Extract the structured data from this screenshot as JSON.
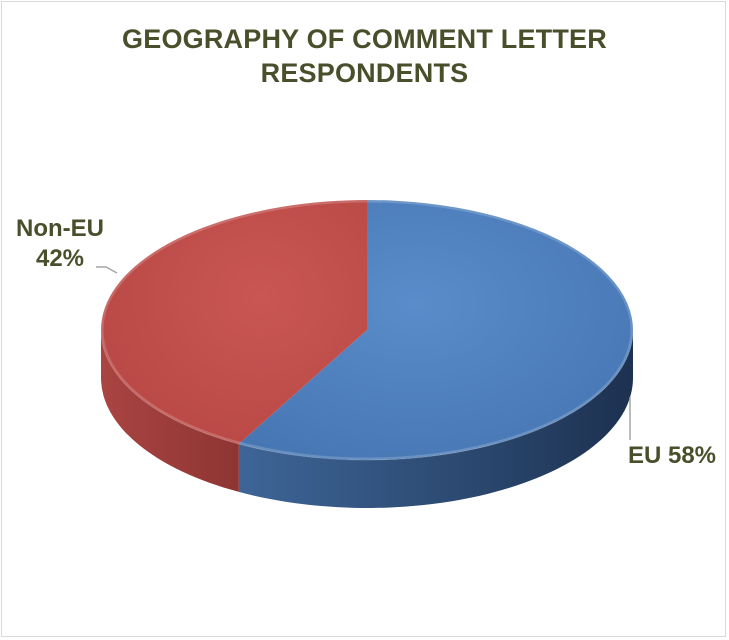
{
  "chart_data": {
    "type": "pie",
    "title_lines": [
      "GEOGRAPHY OF COMMENT LETTER",
      "RESPONDENTS"
    ],
    "slices": [
      {
        "name": "EU",
        "value": 58,
        "label": "EU 58%",
        "color": "#4f81bd"
      },
      {
        "name": "Non-EU",
        "value": 42,
        "label_lines": [
          "Non-EU",
          "42%"
        ],
        "color": "#c0504d"
      }
    ],
    "legend": "none",
    "style": "3d"
  }
}
